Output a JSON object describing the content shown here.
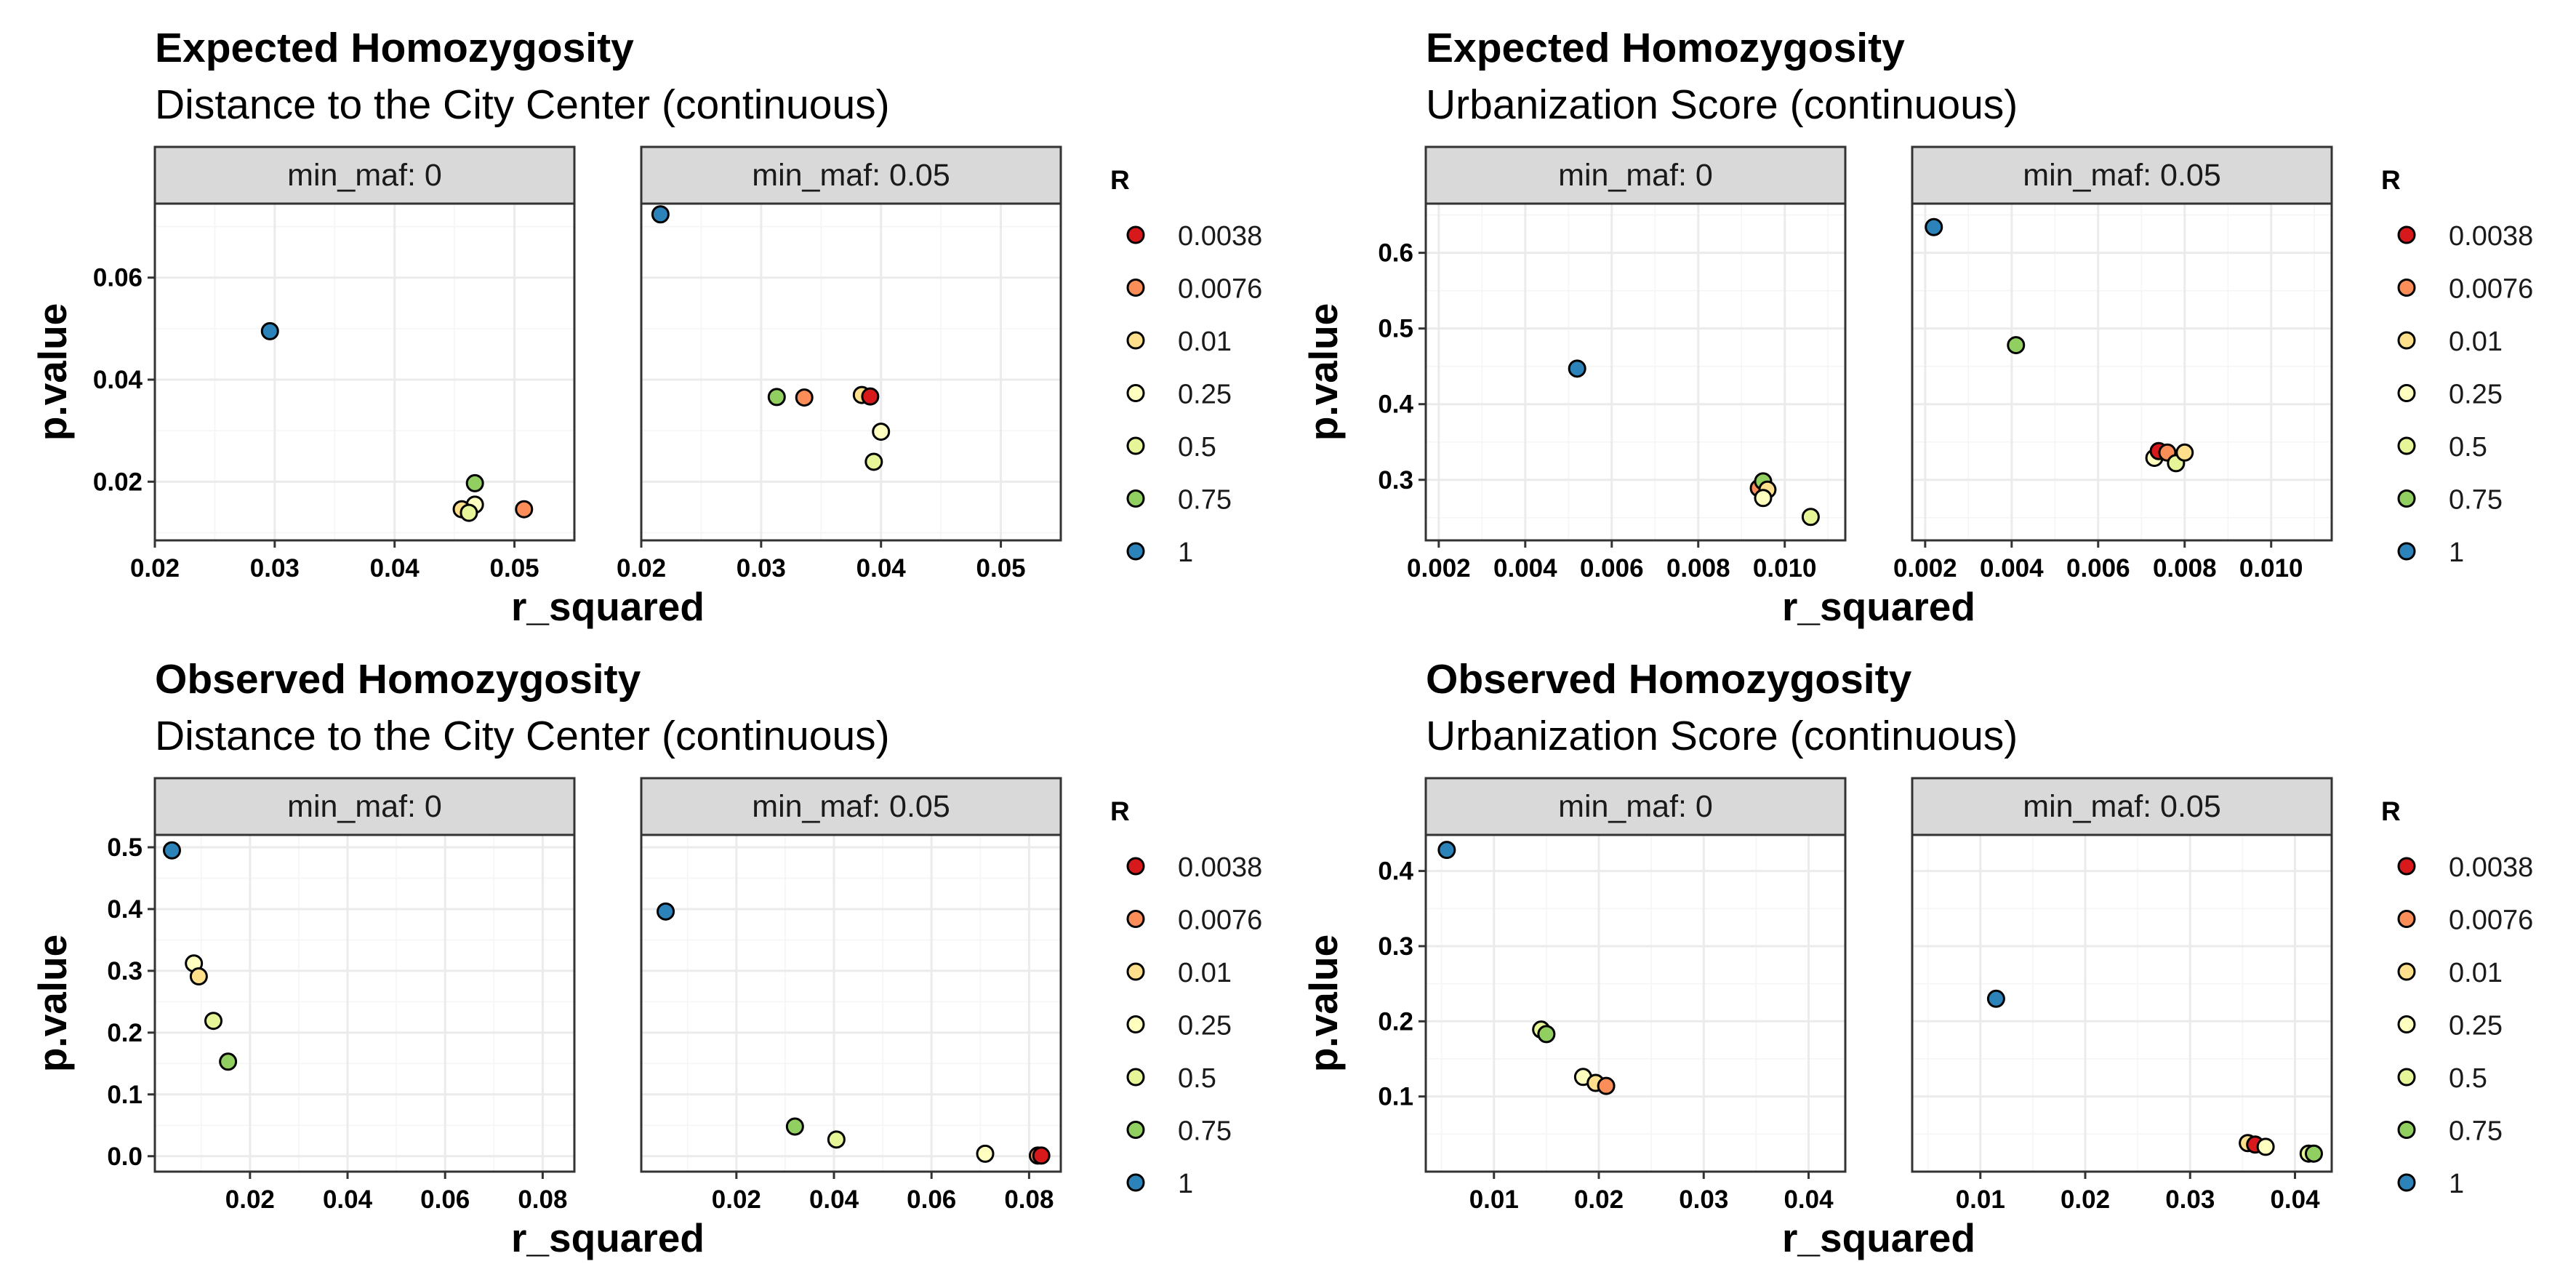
{
  "legend": {
    "title": "R",
    "levels": [
      "0.0038",
      "0.0076",
      "0.01",
      "0.25",
      "0.5",
      "0.75",
      "1"
    ],
    "colors": [
      "#d7191c",
      "#fb8d59",
      "#fedf8b",
      "#ffffbf",
      "#e6f598",
      "#91cf60",
      "#2b83ba"
    ]
  },
  "chart_data": [
    {
      "type": "scatter",
      "title": "Expected Homozygosity",
      "subtitle": "Distance to the City Center (continuous)",
      "xlabel": "r_squared",
      "ylabel": "p.value",
      "y_ticks": [
        0.02,
        0.04,
        0.06
      ],
      "y_tick_labels": [
        "0.02",
        "0.04",
        "0.06"
      ],
      "ylim": [
        0.0085,
        0.0745
      ],
      "facets": [
        {
          "strip": "min_maf: 0",
          "x_ticks": [
            0.02,
            0.03,
            0.04,
            0.05
          ],
          "x_tick_labels": [
            "0.02",
            "0.03",
            "0.04",
            "0.05"
          ],
          "xlim": [
            0.02,
            0.055
          ],
          "points": [
            {
              "R": "1",
              "x": 0.0296,
              "y": 0.0495
            },
            {
              "R": "0.0076",
              "x": 0.0508,
              "y": 0.0146
            },
            {
              "R": "0.75",
              "x": 0.0467,
              "y": 0.0197
            },
            {
              "R": "0.25",
              "x": 0.0467,
              "y": 0.0155
            },
            {
              "R": "0.01",
              "x": 0.0456,
              "y": 0.0146
            },
            {
              "R": "0.5",
              "x": 0.0462,
              "y": 0.0139
            }
          ]
        },
        {
          "strip": "min_maf: 0.05",
          "x_ticks": [
            0.02,
            0.03,
            0.04,
            0.05
          ],
          "x_tick_labels": [
            "0.02",
            "0.03",
            "0.04",
            "0.05"
          ],
          "xlim": [
            0.02,
            0.055
          ],
          "points": [
            {
              "R": "1",
              "x": 0.0216,
              "y": 0.0724
            },
            {
              "R": "0.75",
              "x": 0.0313,
              "y": 0.0366
            },
            {
              "R": "0.0076",
              "x": 0.0336,
              "y": 0.0365
            },
            {
              "R": "0.01",
              "x": 0.0384,
              "y": 0.037
            },
            {
              "R": "0.0038",
              "x": 0.0391,
              "y": 0.0367
            },
            {
              "R": "0.25",
              "x": 0.04,
              "y": 0.0298
            },
            {
              "R": "0.5",
              "x": 0.0394,
              "y": 0.0239
            }
          ]
        }
      ]
    },
    {
      "type": "scatter",
      "title": "Expected Homozygosity",
      "subtitle": "Urbanization Score (continuous)",
      "xlabel": "r_squared",
      "ylabel": "p.value",
      "y_ticks": [
        0.3,
        0.4,
        0.5,
        0.6
      ],
      "y_tick_labels": [
        "0.3",
        "0.4",
        "0.5",
        "0.6"
      ],
      "ylim": [
        0.22,
        0.665
      ],
      "facets": [
        {
          "strip": "min_maf: 0",
          "x_ticks": [
            0.002,
            0.004,
            0.006,
            0.008,
            0.01
          ],
          "x_tick_labels": [
            "0.002",
            "0.004",
            "0.006",
            "0.008",
            "0.010"
          ],
          "xlim": [
            0.0017,
            0.0114
          ],
          "points": [
            {
              "R": "1",
              "x": 0.0052,
              "y": 0.447
            },
            {
              "R": "0.0076",
              "x": 0.0094,
              "y": 0.289
            },
            {
              "R": "0.75",
              "x": 0.0095,
              "y": 0.298
            },
            {
              "R": "0.01",
              "x": 0.0096,
              "y": 0.287
            },
            {
              "R": "0.25",
              "x": 0.0095,
              "y": 0.276
            },
            {
              "R": "0.5",
              "x": 0.0106,
              "y": 0.251
            }
          ]
        },
        {
          "strip": "min_maf: 0.05",
          "x_ticks": [
            0.002,
            0.004,
            0.006,
            0.008,
            0.01
          ],
          "x_tick_labels": [
            "0.002",
            "0.004",
            "0.006",
            "0.008",
            "0.010"
          ],
          "xlim": [
            0.0017,
            0.0114
          ],
          "points": [
            {
              "R": "1",
              "x": 0.0022,
              "y": 0.634
            },
            {
              "R": "0.75",
              "x": 0.0041,
              "y": 0.478
            },
            {
              "R": "0.25",
              "x": 0.0073,
              "y": 0.329
            },
            {
              "R": "0.0038",
              "x": 0.0074,
              "y": 0.338
            },
            {
              "R": "0.0076",
              "x": 0.0076,
              "y": 0.336
            },
            {
              "R": "0.5",
              "x": 0.0078,
              "y": 0.322
            },
            {
              "R": "0.01",
              "x": 0.008,
              "y": 0.336
            }
          ]
        }
      ]
    },
    {
      "type": "scatter",
      "title": "Observed Homozygosity",
      "subtitle": "Distance to the City Center (continuous)",
      "xlabel": "r_squared",
      "ylabel": "p.value",
      "y_ticks": [
        0.0,
        0.1,
        0.2,
        0.3,
        0.4,
        0.5
      ],
      "y_tick_labels": [
        "0.0",
        "0.1",
        "0.2",
        "0.3",
        "0.4",
        "0.5"
      ],
      "ylim": [
        -0.025,
        0.52
      ],
      "facets": [
        {
          "strip": "min_maf: 0",
          "x_ticks": [
            0.02,
            0.04,
            0.06,
            0.08
          ],
          "x_tick_labels": [
            "0.02",
            "0.04",
            "0.06",
            "0.08"
          ],
          "xlim": [
            0.0005,
            0.0865
          ],
          "points": [
            {
              "R": "1",
              "x": 0.004,
              "y": 0.495
            },
            {
              "R": "0.25",
              "x": 0.0085,
              "y": 0.312
            },
            {
              "R": "0.01",
              "x": 0.0095,
              "y": 0.291
            },
            {
              "R": "0.5",
              "x": 0.0125,
              "y": 0.219
            },
            {
              "R": "0.75",
              "x": 0.0155,
              "y": 0.153
            }
          ]
        },
        {
          "strip": "min_maf: 0.05",
          "x_ticks": [
            0.02,
            0.04,
            0.06,
            0.08
          ],
          "x_tick_labels": [
            "0.02",
            "0.04",
            "0.06",
            "0.08"
          ],
          "xlim": [
            0.0005,
            0.0865
          ],
          "points": [
            {
              "R": "1",
              "x": 0.0055,
              "y": 0.396
            },
            {
              "R": "0.75",
              "x": 0.032,
              "y": 0.048
            },
            {
              "R": "0.5",
              "x": 0.0405,
              "y": 0.027
            },
            {
              "R": "0.25",
              "x": 0.071,
              "y": 0.004
            },
            {
              "R": "0.0076",
              "x": 0.0818,
              "y": 0.001
            },
            {
              "R": "0.0038",
              "x": 0.0825,
              "y": 0.001
            }
          ]
        }
      ]
    },
    {
      "type": "scatter",
      "title": "Observed Homozygosity",
      "subtitle": "Urbanization Score (continuous)",
      "xlabel": "r_squared",
      "ylabel": "p.value",
      "y_ticks": [
        0.1,
        0.2,
        0.3,
        0.4
      ],
      "y_tick_labels": [
        "0.1",
        "0.2",
        "0.3",
        "0.4"
      ],
      "ylim": [
        0.0,
        0.448
      ],
      "facets": [
        {
          "strip": "min_maf: 0",
          "x_ticks": [
            0.01,
            0.02,
            0.03,
            0.04
          ],
          "x_tick_labels": [
            "0.01",
            "0.02",
            "0.03",
            "0.04"
          ],
          "xlim": [
            0.0035,
            0.0435
          ],
          "points": [
            {
              "R": "1",
              "x": 0.0055,
              "y": 0.428
            },
            {
              "R": "0.5",
              "x": 0.0145,
              "y": 0.189
            },
            {
              "R": "0.75",
              "x": 0.015,
              "y": 0.183
            },
            {
              "R": "0.25",
              "x": 0.0185,
              "y": 0.126
            },
            {
              "R": "0.01",
              "x": 0.0197,
              "y": 0.118
            },
            {
              "R": "0.0076",
              "x": 0.0207,
              "y": 0.114
            }
          ]
        },
        {
          "strip": "min_maf: 0.05",
          "x_ticks": [
            0.01,
            0.02,
            0.03,
            0.04
          ],
          "x_tick_labels": [
            "0.01",
            "0.02",
            "0.03",
            "0.04"
          ],
          "xlim": [
            0.0035,
            0.0435
          ],
          "points": [
            {
              "R": "1",
              "x": 0.0115,
              "y": 0.23
            },
            {
              "R": "0.01",
              "x": 0.0355,
              "y": 0.038
            },
            {
              "R": "0.0038",
              "x": 0.0362,
              "y": 0.036
            },
            {
              "R": "0.25",
              "x": 0.0372,
              "y": 0.033
            },
            {
              "R": "0.5",
              "x": 0.0413,
              "y": 0.024
            },
            {
              "R": "0.75",
              "x": 0.0418,
              "y": 0.024
            }
          ]
        }
      ]
    }
  ]
}
